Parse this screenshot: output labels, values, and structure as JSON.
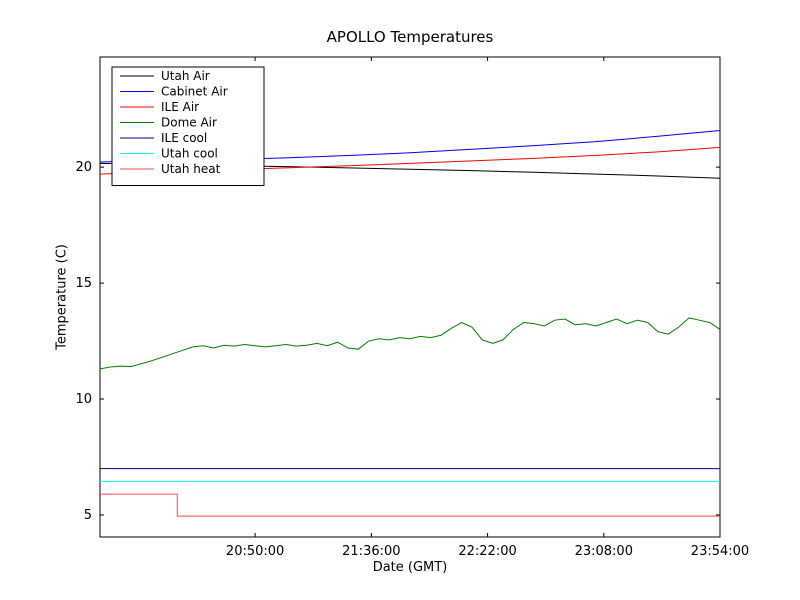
{
  "chart_data": {
    "type": "line",
    "title": "APOLLO Temperatures",
    "xlabel": "Date (GMT)",
    "ylabel": "Temperature (C)",
    "xlim": [
      19.81,
      23.9
    ],
    "ylim": [
      4.05,
      24.75
    ],
    "x_unit": "time_of_day_decimal_hours_GMT",
    "grid": false,
    "legend_position": "upper left",
    "xticks": [
      {
        "value": 20.8333,
        "label": "20:50:00"
      },
      {
        "value": 21.6,
        "label": "21:36:00"
      },
      {
        "value": 22.3667,
        "label": "22:22:00"
      },
      {
        "value": 23.1333,
        "label": "23:08:00"
      },
      {
        "value": 23.9,
        "label": "23:54:00"
      }
    ],
    "yticks": [
      5,
      10,
      15,
      20
    ],
    "series": [
      {
        "name": "Utah Air",
        "color": "#000000",
        "y": [
          20.16,
          20.12,
          20.07,
          20.02,
          19.97,
          19.91,
          19.85,
          19.78,
          19.7,
          19.62,
          19.52
        ]
      },
      {
        "name": "Cabinet Air",
        "color": "#0000ee",
        "y": [
          20.22,
          20.28,
          20.33,
          20.4,
          20.5,
          20.62,
          20.77,
          20.93,
          21.1,
          21.33,
          21.58
        ]
      },
      {
        "name": "ILE Air",
        "color": "#ff0000",
        "y": [
          19.7,
          19.8,
          19.88,
          19.97,
          20.06,
          20.16,
          20.27,
          20.38,
          20.51,
          20.66,
          20.85
        ]
      },
      {
        "name": "Dome Air",
        "color": "#007f00",
        "y": [
          11.3,
          11.38,
          11.42,
          11.4,
          11.52,
          11.65,
          11.8,
          11.95,
          12.1,
          12.25,
          12.3,
          12.2,
          12.32,
          12.28,
          12.35,
          12.3,
          12.25,
          12.3,
          12.35,
          12.28,
          12.32,
          12.4,
          12.3,
          12.45,
          12.2,
          12.15,
          12.5,
          12.6,
          12.55,
          12.65,
          12.6,
          12.7,
          12.65,
          12.75,
          13.05,
          13.3,
          13.1,
          12.55,
          12.4,
          12.55,
          13.0,
          13.3,
          13.25,
          13.15,
          13.4,
          13.45,
          13.2,
          13.25,
          13.15,
          13.3,
          13.45,
          13.25,
          13.4,
          13.3,
          12.9,
          12.8,
          13.1,
          13.5,
          13.4,
          13.3,
          13.0
        ]
      },
      {
        "name": "ILE cool",
        "color": "#000080",
        "x": [
          19.81,
          23.9
        ],
        "y": [
          7.0,
          7.0
        ]
      },
      {
        "name": "Utah cool",
        "color": "#00ffff",
        "x": [
          19.81,
          23.9
        ],
        "y": [
          6.45,
          6.45
        ]
      },
      {
        "name": "Utah heat",
        "color": "#ff4444",
        "x": [
          19.81,
          20.32,
          20.32,
          23.9
        ],
        "y": [
          5.9,
          5.9,
          4.95,
          4.95
        ]
      }
    ]
  }
}
